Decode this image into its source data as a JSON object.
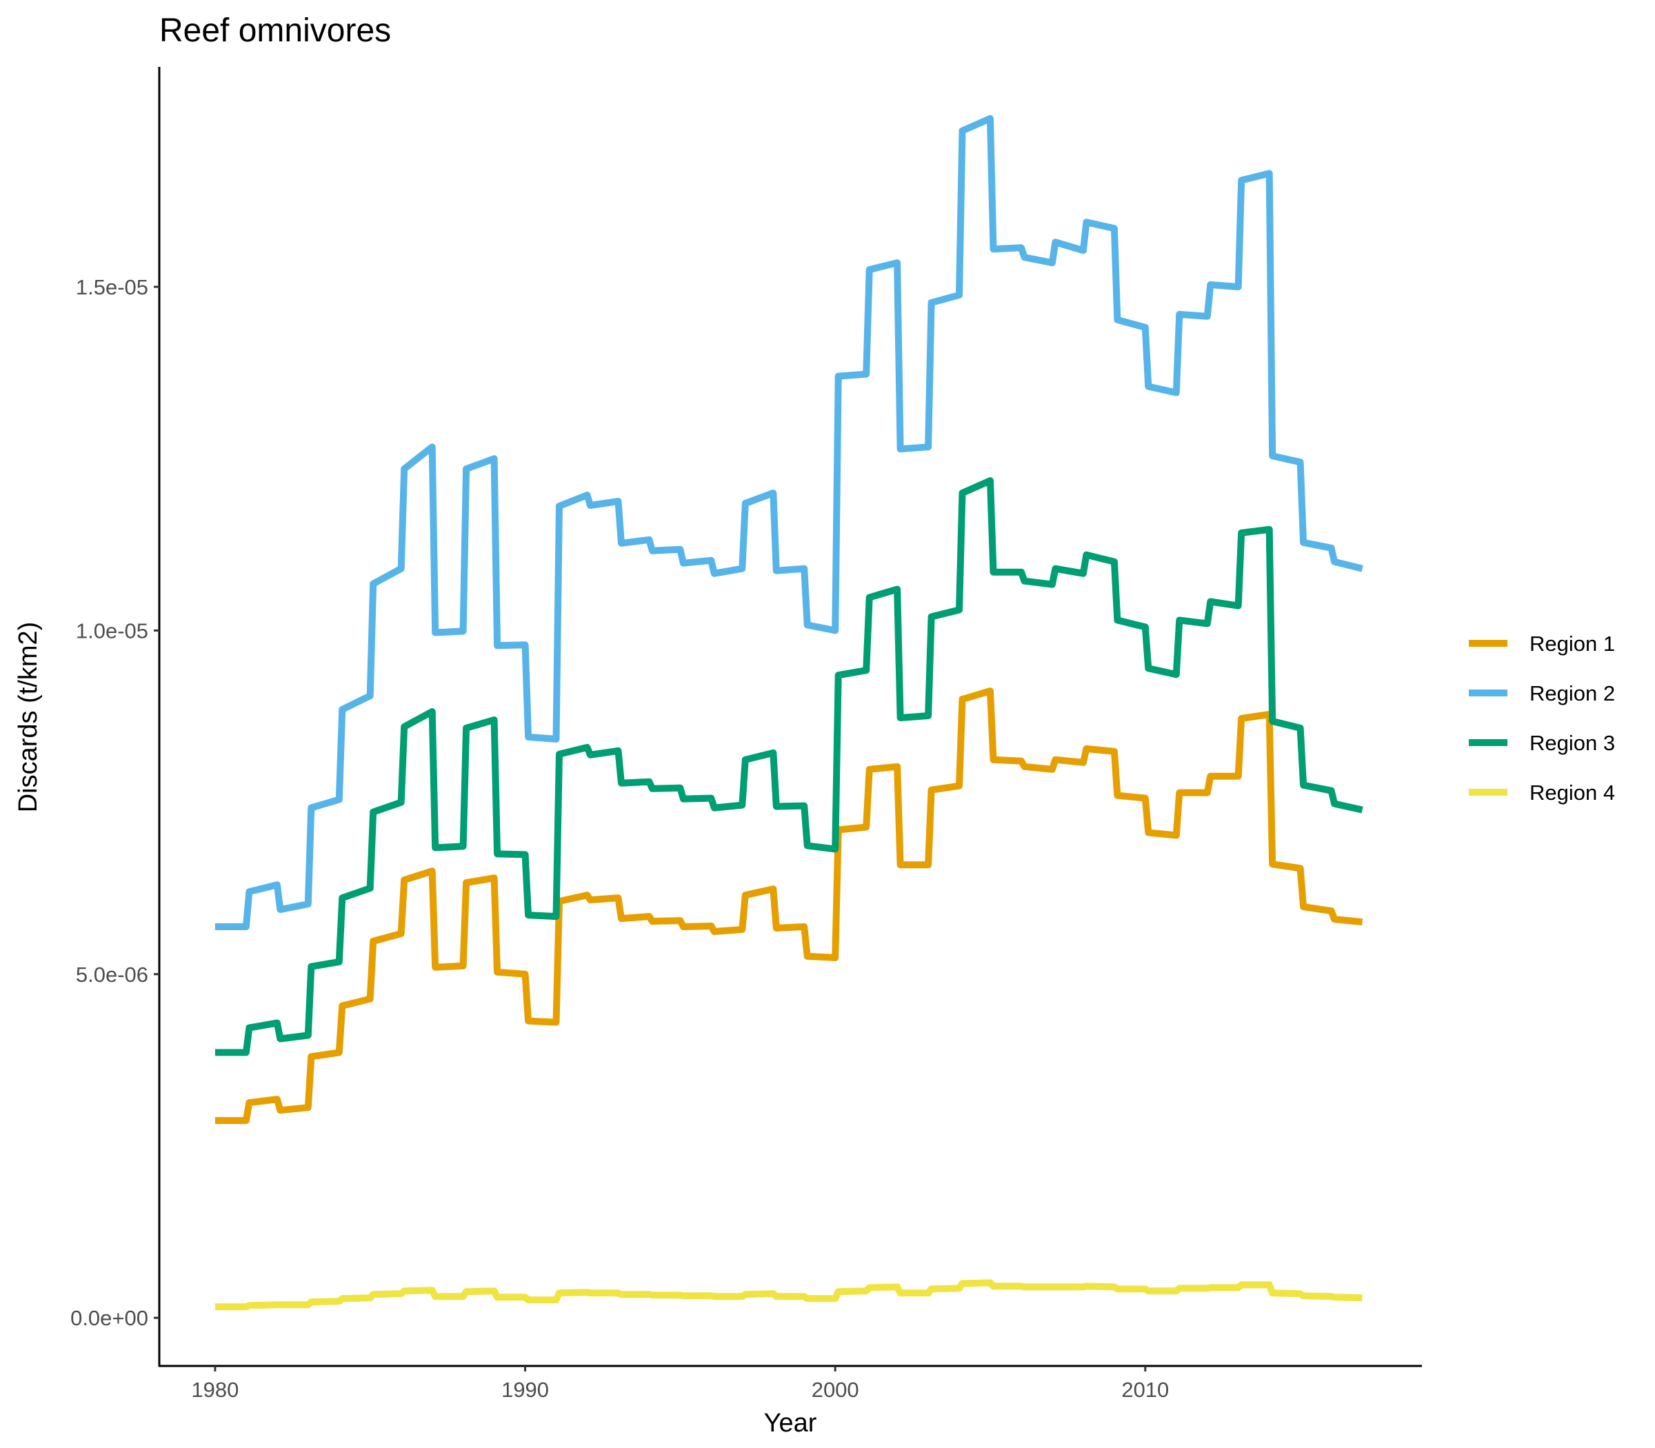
{
  "chart_data": {
    "type": "line",
    "title": "Reef omnivores",
    "xlabel": "Year",
    "ylabel": "Discards (t/km2)",
    "xlim": [
      1978.2,
      2018.9
    ],
    "ylim": [
      -7e-07,
      1.82e-05
    ],
    "x_ticks": [
      1980,
      1990,
      2000,
      2010
    ],
    "x_tick_labels": [
      "1980",
      "1990",
      "2000",
      "2010"
    ],
    "y_ticks": [
      0,
      5e-06,
      1e-05,
      1.5e-05
    ],
    "y_tick_labels": [
      "0.0e+00",
      "5.0e-06",
      "1.0e-05",
      "1.5e-05"
    ],
    "grid": false,
    "legend_position": "right",
    "x": [
      1980.0,
      1981.0,
      1981.1,
      1982.0,
      1982.1,
      1983.0,
      1983.1,
      1984.0,
      1984.1,
      1985.0,
      1985.1,
      1986.0,
      1986.1,
      1987.0,
      1987.1,
      1988.0,
      1988.1,
      1989.0,
      1989.1,
      1990.0,
      1990.1,
      1991.0,
      1991.1,
      1992.0,
      1992.1,
      1993.0,
      1993.1,
      1994.0,
      1994.1,
      1995.0,
      1995.1,
      1996.0,
      1996.1,
      1997.0,
      1997.1,
      1998.0,
      1998.1,
      1999.0,
      1999.1,
      2000.0,
      2000.1,
      2001.0,
      2001.1,
      2002.0,
      2002.1,
      2003.0,
      2003.1,
      2004.0,
      2004.1,
      2005.0,
      2005.1,
      2006.0,
      2006.1,
      2007.0,
      2007.1,
      2008.0,
      2008.1,
      2009.0,
      2009.1,
      2010.0,
      2010.1,
      2011.0,
      2011.1,
      2012.0,
      2012.1,
      2013.0,
      2013.1,
      2014.0,
      2014.1,
      2015.0,
      2015.1,
      2016.0,
      2016.1,
      2017.0
    ],
    "series": [
      {
        "name": "Region 1",
        "color": "#E69F00",
        "values": [
          2.87e-06,
          2.87e-06,
          3.13e-06,
          3.18e-06,
          3.02e-06,
          3.06e-06,
          3.8e-06,
          3.86e-06,
          4.54e-06,
          4.64e-06,
          5.48e-06,
          5.59e-06,
          6.37e-06,
          6.5e-06,
          5.1e-06,
          5.12e-06,
          6.33e-06,
          6.4e-06,
          5.03e-06,
          5e-06,
          4.32e-06,
          4.3e-06,
          6.06e-06,
          6.15e-06,
          6.08e-06,
          6.11e-06,
          5.81e-06,
          5.84e-06,
          5.77e-06,
          5.78e-06,
          5.69e-06,
          5.7e-06,
          5.62e-06,
          5.65e-06,
          6.15e-06,
          6.24e-06,
          5.67e-06,
          5.69e-06,
          5.26e-06,
          5.24e-06,
          7.1e-06,
          7.14e-06,
          7.98e-06,
          8.02e-06,
          6.59e-06,
          6.59e-06,
          7.68e-06,
          7.74e-06,
          9e-06,
          9.12e-06,
          8.12e-06,
          8.1e-06,
          8.02e-06,
          7.98e-06,
          8.12e-06,
          8.08e-06,
          8.28e-06,
          8.24e-06,
          7.6e-06,
          7.56e-06,
          7.06e-06,
          7.02e-06,
          7.64e-06,
          7.64e-06,
          7.88e-06,
          7.88e-06,
          8.72e-06,
          8.78e-06,
          6.6e-06,
          6.54e-06,
          5.98e-06,
          5.92e-06,
          5.8e-06,
          5.76e-06
        ]
      },
      {
        "name": "Region 2",
        "color": "#56B4E9",
        "values": [
          5.69e-06,
          5.69e-06,
          6.2e-06,
          6.3e-06,
          5.94e-06,
          6.02e-06,
          7.42e-06,
          7.54e-06,
          8.85e-06,
          9.05e-06,
          1.068e-05,
          1.09e-05,
          1.235e-05,
          1.267e-05,
          9.97e-06,
          9.99e-06,
          1.235e-05,
          1.25e-05,
          9.78e-06,
          9.79e-06,
          8.45e-06,
          8.42e-06,
          1.181e-05,
          1.197e-05,
          1.182e-05,
          1.188e-05,
          1.127e-05,
          1.132e-05,
          1.116e-05,
          1.118e-05,
          1.098e-05,
          1.102e-05,
          1.083e-05,
          1.09e-05,
          1.185e-05,
          1.2e-05,
          1.087e-05,
          1.09e-05,
          1.008e-05,
          1e-05,
          1.37e-05,
          1.373e-05,
          1.525e-05,
          1.535e-05,
          1.264e-05,
          1.267e-05,
          1.477e-05,
          1.488e-05,
          1.727e-05,
          1.745e-05,
          1.555e-05,
          1.557e-05,
          1.543e-05,
          1.535e-05,
          1.565e-05,
          1.553e-05,
          1.594e-05,
          1.585e-05,
          1.452e-05,
          1.441e-05,
          1.355e-05,
          1.346e-05,
          1.46e-05,
          1.457e-05,
          1.503e-05,
          1.5e-05,
          1.655e-05,
          1.665e-05,
          1.254e-05,
          1.245e-05,
          1.128e-05,
          1.12e-05,
          1.1e-05,
          1.09e-05
        ]
      },
      {
        "name": "Region 3",
        "color": "#009E73",
        "values": [
          3.86e-06,
          3.86e-06,
          4.22e-06,
          4.29e-06,
          4.06e-06,
          4.11e-06,
          5.11e-06,
          5.18e-06,
          6.11e-06,
          6.25e-06,
          7.36e-06,
          7.5e-06,
          8.6e-06,
          8.82e-06,
          6.84e-06,
          6.86e-06,
          8.58e-06,
          8.7e-06,
          6.75e-06,
          6.74e-06,
          5.86e-06,
          5.84e-06,
          8.2e-06,
          8.3e-06,
          8.19e-06,
          8.25e-06,
          7.78e-06,
          7.8e-06,
          7.7e-06,
          7.71e-06,
          7.55e-06,
          7.56e-06,
          7.42e-06,
          7.46e-06,
          8.12e-06,
          8.22e-06,
          7.44e-06,
          7.45e-06,
          6.87e-06,
          6.82e-06,
          9.35e-06,
          9.42e-06,
          1.048e-05,
          1.06e-05,
          8.73e-06,
          8.76e-06,
          1.02e-05,
          1.03e-05,
          1.2e-05,
          1.218e-05,
          1.085e-05,
          1.085e-05,
          1.072e-05,
          1.067e-05,
          1.09e-05,
          1.083e-05,
          1.11e-05,
          1.1e-05,
          1.015e-05,
          1.005e-05,
          9.45e-06,
          9.36e-06,
          1.015e-05,
          1.01e-05,
          1.042e-05,
          1.036e-05,
          1.142e-05,
          1.147e-05,
          8.68e-06,
          8.58e-06,
          7.75e-06,
          7.67e-06,
          7.48e-06,
          7.39e-06
        ]
      },
      {
        "name": "Region 4",
        "color": "#F0E442",
        "values": [
          1.6e-07,
          1.6e-07,
          1.8e-07,
          1.9e-07,
          1.9e-07,
          1.9e-07,
          2.3e-07,
          2.4e-07,
          2.8e-07,
          2.9e-07,
          3.4e-07,
          3.5e-07,
          3.9e-07,
          4e-07,
          3.1e-07,
          3.1e-07,
          3.8e-07,
          3.9e-07,
          3e-07,
          3e-07,
          2.6e-07,
          2.6e-07,
          3.6e-07,
          3.7e-07,
          3.6e-07,
          3.6e-07,
          3.4e-07,
          3.4e-07,
          3.3e-07,
          3.3e-07,
          3.2e-07,
          3.2e-07,
          3.1e-07,
          3.1e-07,
          3.4e-07,
          3.5e-07,
          3.1e-07,
          3.1e-07,
          2.8e-07,
          2.8e-07,
          3.8e-07,
          3.9e-07,
          4.4e-07,
          4.5e-07,
          3.6e-07,
          3.6e-07,
          4.2e-07,
          4.3e-07,
          5e-07,
          5.1e-07,
          4.6e-07,
          4.6e-07,
          4.5e-07,
          4.5e-07,
          4.5e-07,
          4.5e-07,
          4.6e-07,
          4.5e-07,
          4.2e-07,
          4.2e-07,
          3.9e-07,
          3.9e-07,
          4.3e-07,
          4.3e-07,
          4.4e-07,
          4.4e-07,
          4.8e-07,
          4.8e-07,
          3.6e-07,
          3.5e-07,
          3.2e-07,
          3.1e-07,
          3e-07,
          2.9e-07
        ]
      }
    ]
  }
}
